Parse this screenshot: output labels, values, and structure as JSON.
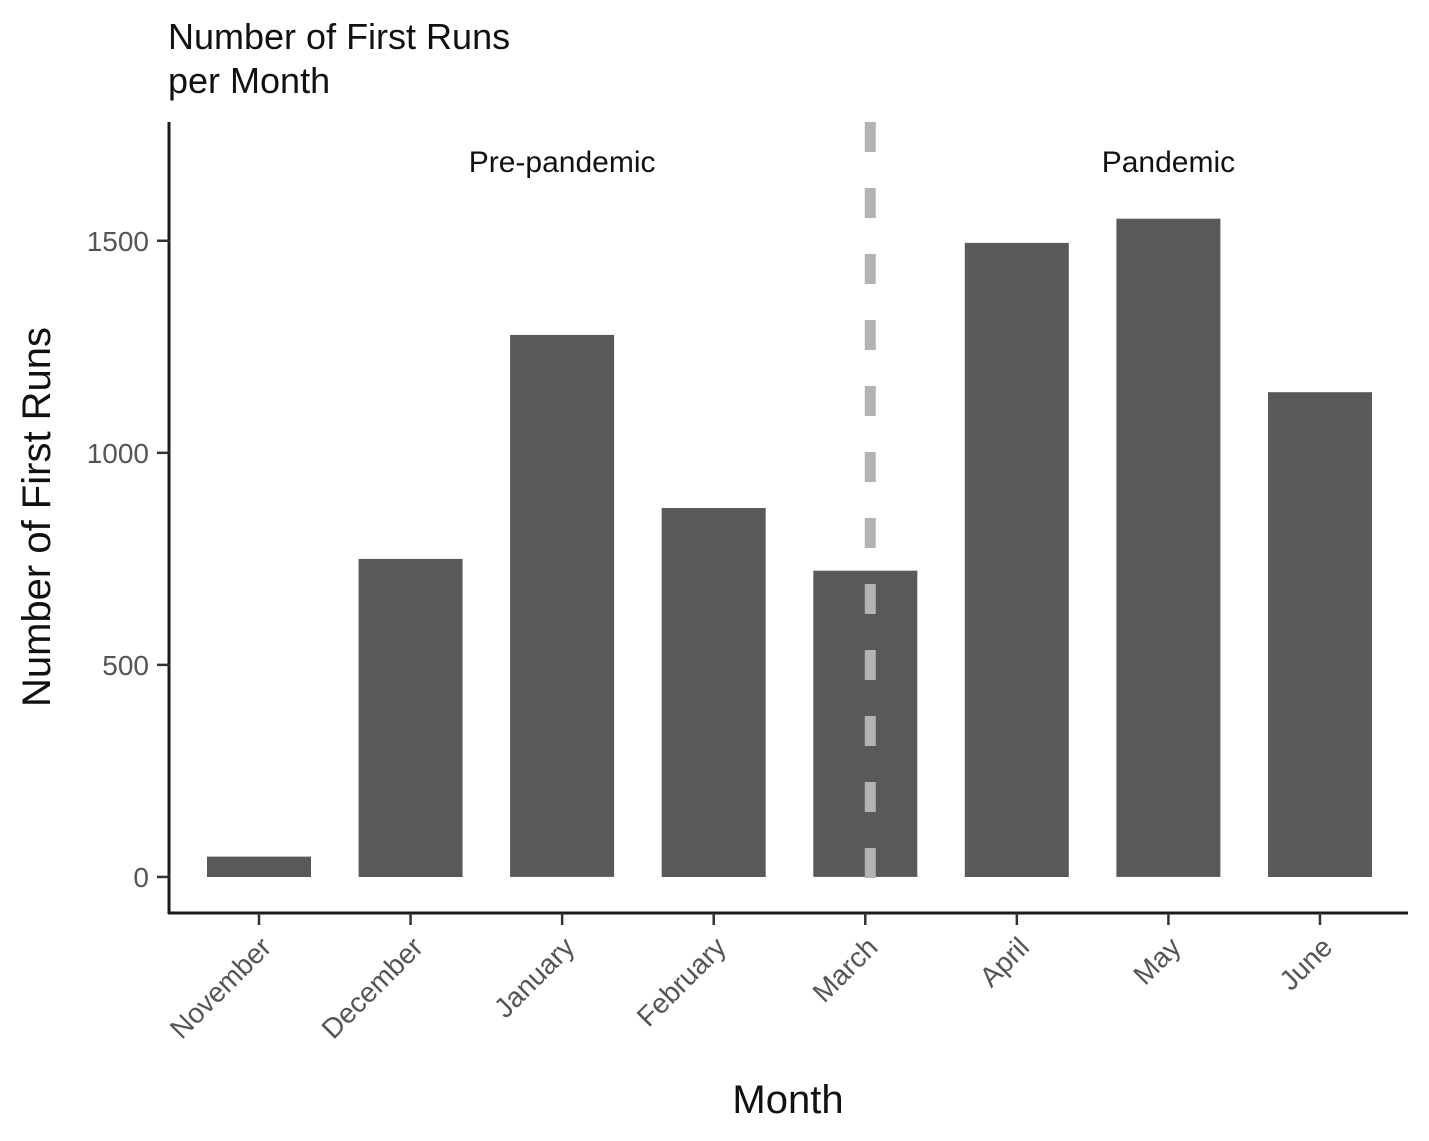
{
  "chart_data": {
    "type": "bar",
    "title": [
      "Number of First Runs",
      "per Month"
    ],
    "xlabel": "Month",
    "ylabel": "Number of First Runs",
    "categories": [
      "November",
      "December",
      "January",
      "February",
      "March",
      "April",
      "May",
      "June"
    ],
    "values": [
      48,
      750,
      1278,
      870,
      722,
      1495,
      1552,
      1143
    ],
    "ylim": [
      -85,
      1780
    ],
    "yticks": [
      0,
      500,
      1000,
      1500
    ],
    "grid": false,
    "bar_color": "#595959",
    "annotations": [
      {
        "text": "Pre-pandemic",
        "x_category": "January",
        "x_offset": 0,
        "y": 1690
      },
      {
        "text": "Pandemic",
        "x_category": "May",
        "x_offset": 0,
        "y": 1690
      }
    ],
    "reference_line": {
      "x_category": "March",
      "style": "dashed",
      "color": "#b3b3b3"
    }
  }
}
